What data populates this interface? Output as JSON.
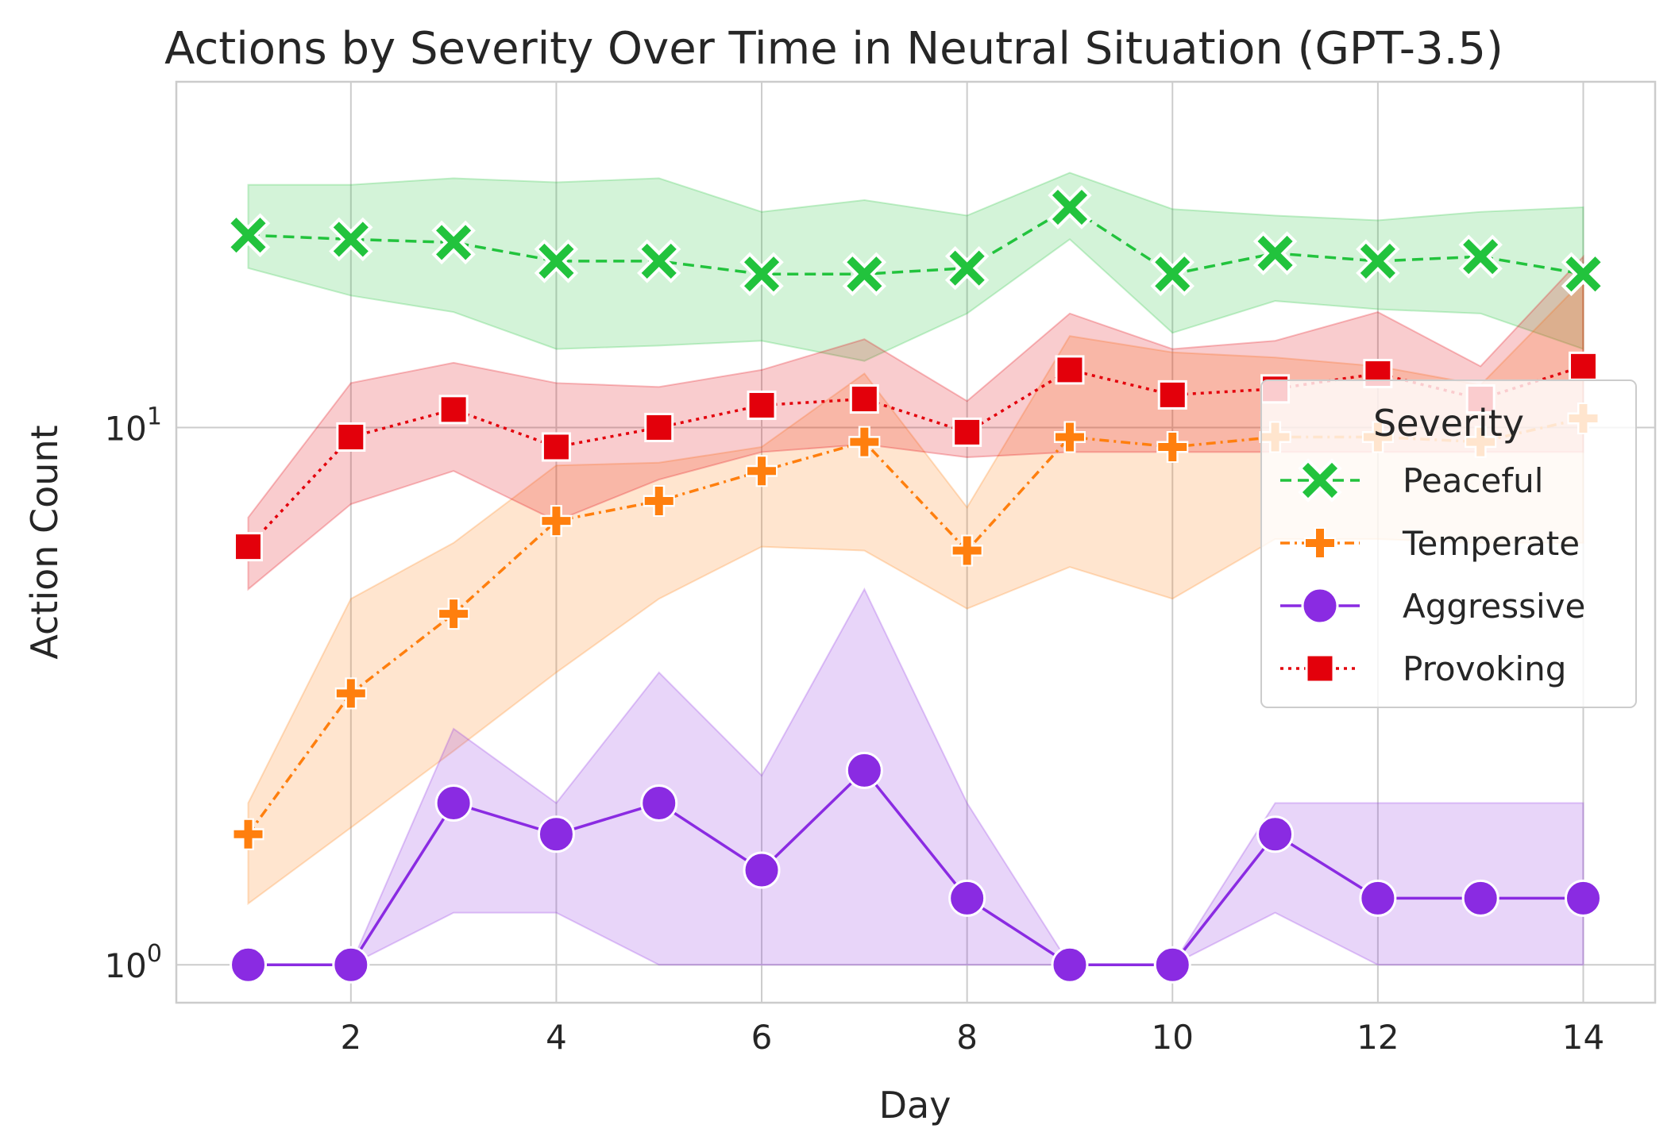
{
  "chart_data": {
    "type": "line",
    "title": "Actions by Severity Over Time in Neutral Situation (GPT-3.5)",
    "xlabel": "Day",
    "ylabel": "Action Count",
    "yscale": "log",
    "xlim": [
      0.3,
      14.7
    ],
    "ylim": [
      0.85,
      44
    ],
    "x_ticks": [
      2,
      4,
      6,
      8,
      10,
      12,
      14
    ],
    "y_ticks": [
      {
        "value": 1,
        "base": "10",
        "exp": "0"
      },
      {
        "value": 10,
        "base": "10",
        "exp": "1"
      }
    ],
    "grid": true,
    "legend": {
      "title": "Severity",
      "placement": "right"
    },
    "x": [
      1,
      2,
      3,
      4,
      5,
      6,
      7,
      8,
      9,
      10,
      11,
      12,
      13,
      14
    ],
    "series": [
      {
        "name": "Peaceful",
        "color": "#22c33d",
        "marker": "x",
        "linestyle": "dashed",
        "values": [
          22.8,
          22.4,
          22.1,
          20.4,
          20.4,
          19.3,
          19.3,
          19.8,
          25.7,
          19.3,
          21.1,
          20.4,
          20.8,
          19.3
        ],
        "ci_low": [
          19.8,
          17.6,
          16.4,
          14.0,
          14.2,
          14.5,
          13.3,
          16.3,
          22.4,
          15.0,
          17.2,
          16.6,
          16.3,
          14.0
        ],
        "ci_high": [
          28.3,
          28.3,
          29.1,
          28.6,
          29.1,
          25.2,
          26.5,
          24.8,
          29.8,
          25.5,
          24.8,
          24.3,
          25.2,
          25.7
        ]
      },
      {
        "name": "Temperate",
        "color": "#ff7f0e",
        "marker": "plus",
        "linestyle": "dashdot",
        "values": [
          1.75,
          3.2,
          4.5,
          6.7,
          7.3,
          8.3,
          9.4,
          5.9,
          9.6,
          9.2,
          9.6,
          9.6,
          9.4,
          10.4
        ],
        "ci_low": [
          1.3,
          1.8,
          2.5,
          3.5,
          4.8,
          6.0,
          5.9,
          4.6,
          5.5,
          4.8,
          6.2,
          6.2,
          6.1,
          6.1
        ],
        "ci_high": [
          2.0,
          4.8,
          6.1,
          8.5,
          8.6,
          9.2,
          12.6,
          7.1,
          14.8,
          13.8,
          13.5,
          13.0,
          12.0,
          18.8
        ]
      },
      {
        "name": "Aggressive",
        "color": "#8a2be2",
        "marker": "circle",
        "linestyle": "solid",
        "values": [
          1.0,
          1.0,
          2.0,
          1.75,
          2.0,
          1.5,
          2.3,
          1.33,
          1.0,
          1.0,
          1.75,
          1.33,
          1.33,
          1.33
        ],
        "ci_low": [
          1.0,
          1.0,
          1.25,
          1.25,
          1.0,
          1.0,
          1.0,
          1.0,
          1.0,
          1.0,
          1.25,
          1.0,
          1.0,
          1.0
        ],
        "ci_high": [
          1.0,
          1.0,
          2.75,
          2.0,
          3.5,
          2.25,
          5.0,
          2.0,
          1.0,
          1.0,
          2.0,
          2.0,
          2.0,
          2.0
        ]
      },
      {
        "name": "Provoking",
        "color": "#e3000b",
        "marker": "square",
        "linestyle": "dotted",
        "values": [
          6.0,
          9.6,
          10.8,
          9.2,
          10.0,
          11.0,
          11.3,
          9.8,
          12.8,
          11.5,
          11.8,
          12.6,
          11.3,
          13.0
        ],
        "ci_low": [
          5.0,
          7.2,
          8.3,
          6.7,
          8.0,
          9.0,
          9.3,
          8.8,
          9.0,
          9.0,
          9.0,
          9.0,
          9.0,
          9.0
        ],
        "ci_high": [
          6.8,
          12.1,
          13.2,
          12.1,
          11.9,
          12.8,
          14.6,
          11.2,
          16.3,
          14.0,
          14.5,
          16.4,
          13.0,
          20.8
        ]
      }
    ]
  }
}
